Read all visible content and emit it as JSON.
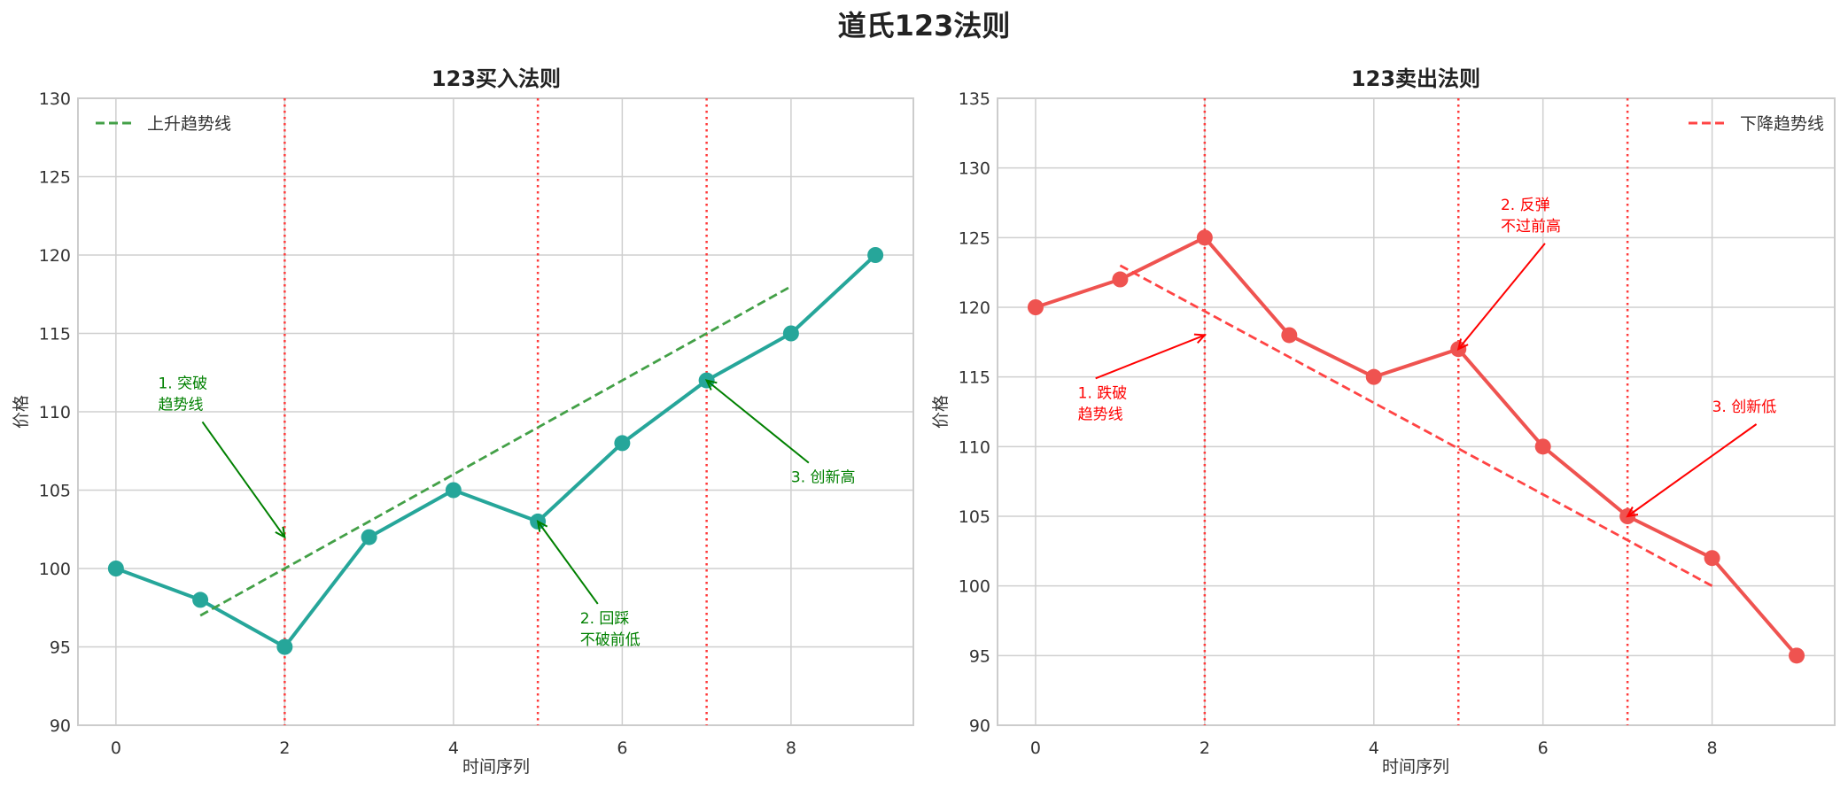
{
  "figure": {
    "suptitle": "道氏123法则"
  },
  "chart_data": [
    {
      "type": "line",
      "title": "123买入法则",
      "xlabel": "时间序列",
      "ylabel": "价格",
      "xlim": [
        -0.45,
        9.45
      ],
      "ylim": [
        90,
        130
      ],
      "xticks": [
        0,
        2,
        4,
        6,
        8
      ],
      "yticks": [
        90,
        95,
        100,
        105,
        110,
        115,
        120,
        125,
        130
      ],
      "grid": true,
      "legend_position": "upper left",
      "series": [
        {
          "name": "价格",
          "color": "#26a69a",
          "marker": "circle",
          "x": [
            0,
            1,
            2,
            3,
            4,
            5,
            6,
            7,
            8,
            9
          ],
          "values": [
            100,
            98,
            95,
            102,
            105,
            103,
            108,
            112,
            115,
            120
          ]
        },
        {
          "name": "上升趋势线",
          "color": "#43a047",
          "style": "dashed",
          "x": [
            1,
            8
          ],
          "values": [
            97,
            118
          ],
          "in_legend": true
        }
      ],
      "vlines": {
        "x": [
          2,
          5,
          7
        ],
        "color": "#ff3b3b",
        "style": "dotted"
      },
      "annotations": [
        {
          "text": [
            "1. 突破",
            "趋势线"
          ],
          "text_xy": [
            0.5,
            111.5
          ],
          "arrow_to": [
            2,
            102
          ],
          "color": "#008000"
        },
        {
          "text": [
            "2. 回踩",
            "不破前低"
          ],
          "text_xy": [
            5.5,
            96.5
          ],
          "arrow_to": [
            5,
            103
          ],
          "color": "#008000"
        },
        {
          "text": [
            "3. 创新高"
          ],
          "text_xy": [
            8,
            105.5
          ],
          "arrow_to": [
            7,
            112
          ],
          "color": "#008000"
        }
      ]
    },
    {
      "type": "line",
      "title": "123卖出法则",
      "xlabel": "时间序列",
      "ylabel": "价格",
      "xlim": [
        -0.45,
        9.45
      ],
      "ylim": [
        90,
        135
      ],
      "xticks": [
        0,
        2,
        4,
        6,
        8
      ],
      "yticks": [
        90,
        95,
        100,
        105,
        110,
        115,
        120,
        125,
        130,
        135
      ],
      "grid": true,
      "legend_position": "upper right",
      "series": [
        {
          "name": "价格",
          "color": "#ef5350",
          "marker": "circle",
          "x": [
            0,
            1,
            2,
            3,
            4,
            5,
            6,
            7,
            8,
            9
          ],
          "values": [
            120,
            122,
            125,
            118,
            115,
            117,
            110,
            105,
            102,
            95
          ]
        },
        {
          "name": "下降趋势线",
          "color": "#ff4444",
          "style": "dashed",
          "x": [
            1,
            8
          ],
          "values": [
            123,
            100
          ],
          "in_legend": true
        }
      ],
      "vlines": {
        "x": [
          2,
          5,
          7
        ],
        "color": "#ff3b3b",
        "style": "dotted"
      },
      "annotations": [
        {
          "text": [
            "1. 跌破",
            "趋势线"
          ],
          "text_xy": [
            0.5,
            113.5
          ],
          "arrow_to": [
            2,
            118
          ],
          "color": "#ff0000"
        },
        {
          "text": [
            "2. 反弹",
            "不过前高"
          ],
          "text_xy": [
            5.5,
            127
          ],
          "arrow_to": [
            5,
            117
          ],
          "color": "#ff0000"
        },
        {
          "text": [
            "3. 创新低"
          ],
          "text_xy": [
            8,
            112.5
          ],
          "arrow_to": [
            7,
            105
          ],
          "color": "#ff0000"
        }
      ]
    }
  ]
}
